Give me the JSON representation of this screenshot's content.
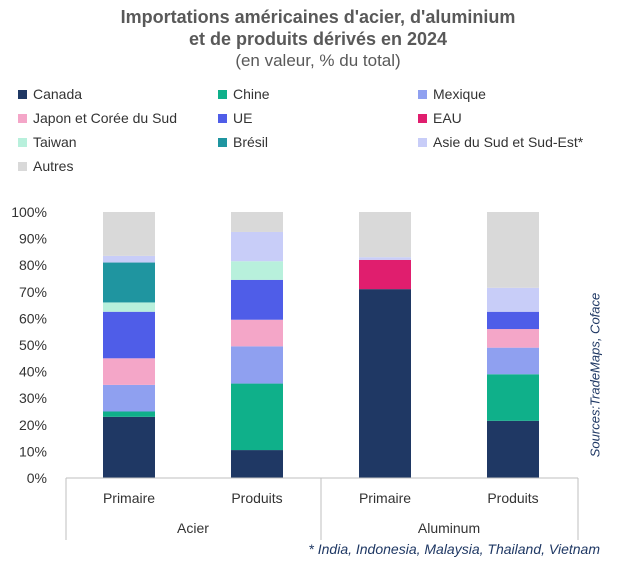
{
  "title_line1": "Importations américaines d'acier, d'aluminium",
  "title_line2": "et de produits dérivés en 2024",
  "subtitle": "(en valeur, % du total)",
  "source": "Sources:TradeMaps, Coface",
  "footnote": "* India, Indonesia, Malaysia, Thailand, Vietnam",
  "chart_data": {
    "type": "bar",
    "stacked": true,
    "x": [
      "Primaire",
      "Produits",
      "Primaire",
      "Produits"
    ],
    "groups": [
      {
        "label": "Acier",
        "members": [
          0,
          1
        ]
      },
      {
        "label": "Aluminum",
        "members": [
          2,
          3
        ]
      }
    ],
    "ylim": [
      0,
      100
    ],
    "yticks": [
      "0%",
      "10%",
      "20%",
      "30%",
      "40%",
      "50%",
      "60%",
      "70%",
      "80%",
      "90%",
      "100%"
    ],
    "legend_position": "top",
    "series": [
      {
        "name": "Canada",
        "color": "#1f3864",
        "values": [
          23,
          10.5,
          71,
          21.5
        ]
      },
      {
        "name": "Chine",
        "color": "#0fb08a",
        "values": [
          2,
          25,
          0,
          17.5
        ]
      },
      {
        "name": "Mexique",
        "color": "#8fa0f0",
        "values": [
          10,
          14,
          0,
          10
        ]
      },
      {
        "name": "Japon et Corée du Sud",
        "color": "#f4a6c8",
        "values": [
          10,
          10,
          0,
          7
        ]
      },
      {
        "name": "UE",
        "color": "#4f5de8",
        "values": [
          17.5,
          15,
          0,
          6.5
        ]
      },
      {
        "name": "EAU",
        "color": "#e01e6e",
        "values": [
          0,
          0,
          11,
          0
        ]
      },
      {
        "name": "Taiwan",
        "color": "#b8f0dc",
        "values": [
          3.5,
          7,
          0,
          0
        ]
      },
      {
        "name": "Brésil",
        "color": "#1f95a0",
        "values": [
          15,
          0,
          0,
          0
        ]
      },
      {
        "name": "Asie du Sud et Sud-Est*",
        "color": "#c8cdf8",
        "values": [
          2.5,
          11,
          1,
          9
        ]
      },
      {
        "name": "Autres",
        "color": "#d9d9d9",
        "values": [
          16.5,
          7.5,
          17,
          28.5
        ]
      }
    ]
  }
}
